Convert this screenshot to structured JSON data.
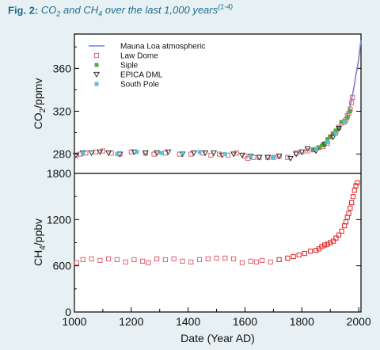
{
  "figure": {
    "label": "Fig. 2:",
    "title_parts": [
      "CO",
      "2",
      " and CH",
      "4",
      " over the last 1,000 years",
      "(1-4)"
    ]
  },
  "chart_data": [
    {
      "type": "scatter",
      "panel": "top",
      "ylabel_parts": [
        "CO",
        "2",
        "/ppmv"
      ],
      "xlabel": "Date (Year AD)",
      "xlim": [
        1000,
        2008
      ],
      "ylim": [
        262,
        392
      ],
      "yticks": [
        280,
        320,
        360
      ],
      "xticks": [
        1000,
        1200,
        1400,
        1600,
        1800,
        2000
      ],
      "legend_position": "top-left",
      "legend": [
        {
          "name": "Mauna Loa atmospheric",
          "color": "#7b7fcf",
          "marker": "line"
        },
        {
          "name": "Law Dome",
          "color": "#e06070",
          "marker": "square"
        },
        {
          "name": "Siple",
          "color": "#55a83a",
          "marker": "square-filled"
        },
        {
          "name": "EPICA DML",
          "color": "#333333",
          "marker": "triangle-down"
        },
        {
          "name": "South Pole",
          "color": "#5cc0d8",
          "marker": "square-filled"
        }
      ],
      "series": [
        {
          "name": "Mauna Loa atmospheric",
          "x": [
            1958,
            1965,
            1970,
            1975,
            1980,
            1985,
            1990,
            1995,
            2000,
            2005,
            2008
          ],
          "y": [
            315,
            320,
            325,
            331,
            338,
            345,
            354,
            360,
            369,
            380,
            386
          ]
        },
        {
          "name": "Law Dome",
          "x": [
            1006,
            1020,
            1040,
            1075,
            1100,
            1130,
            1160,
            1200,
            1250,
            1280,
            1320,
            1370,
            1410,
            1450,
            1480,
            1510,
            1540,
            1570,
            1600,
            1610,
            1630,
            1650,
            1680,
            1700,
            1720,
            1750,
            1780,
            1800,
            1820,
            1840,
            1860,
            1875,
            1890,
            1900,
            1910,
            1920,
            1930,
            1940,
            1950,
            1955,
            1960,
            1965,
            1970,
            1975,
            1978
          ],
          "y": [
            279,
            280,
            281,
            282,
            283,
            281,
            280,
            282,
            281,
            280,
            281,
            280,
            280,
            281,
            279,
            280,
            279,
            281,
            278,
            276,
            277,
            277,
            277,
            277,
            278,
            277,
            281,
            282,
            283,
            284,
            286,
            287,
            290,
            296,
            299,
            301,
            305,
            309,
            310,
            312,
            316,
            318,
            322,
            328,
            333
          ]
        },
        {
          "name": "Siple",
          "x": [
            1840,
            1850,
            1860,
            1870,
            1880,
            1890,
            1900,
            1910,
            1920,
            1930,
            1940,
            1950,
            1960,
            1970
          ],
          "y": [
            284,
            285,
            286,
            288,
            290,
            294,
            296,
            299,
            302,
            304,
            310,
            311,
            314,
            320
          ]
        },
        {
          "name": "EPICA DML",
          "x": [
            1005,
            1030,
            1060,
            1090,
            1120,
            1160,
            1210,
            1250,
            1290,
            1330,
            1380,
            1420,
            1460,
            1490,
            1520,
            1560,
            1590,
            1620,
            1650,
            1680,
            1720,
            1760,
            1780,
            1800,
            1820,
            1850,
            1880,
            1910,
            1930
          ],
          "y": [
            279,
            281,
            281,
            282,
            281,
            280,
            282,
            281,
            281,
            282,
            280,
            281,
            281,
            281,
            279,
            280,
            279,
            278,
            277,
            277,
            278,
            276,
            280,
            282,
            285,
            283,
            289,
            296,
            304
          ]
        },
        {
          "name": "South Pole",
          "x": [
            1030,
            1150,
            1220,
            1305,
            1380,
            1440,
            1530,
            1620,
            1700,
            1850,
            1890,
            1920,
            1950
          ],
          "y": [
            281,
            280,
            282,
            281,
            281,
            282,
            280,
            278,
            277,
            285,
            291,
            299,
            310
          ]
        }
      ]
    },
    {
      "type": "scatter",
      "panel": "bottom",
      "ylabel_parts": [
        "CH",
        "4",
        "/ppbv"
      ],
      "xlabel": "Date (Year AD)",
      "xlim": [
        1000,
        2008
      ],
      "ylim": [
        0,
        1800
      ],
      "yticks": [
        0,
        600,
        1200,
        1800
      ],
      "xticks": [
        1000,
        1200,
        1400,
        1600,
        1800,
        2000
      ],
      "series": [
        {
          "name": "Law Dome",
          "x": [
            1008,
            1030,
            1060,
            1090,
            1120,
            1150,
            1180,
            1210,
            1240,
            1260,
            1290,
            1320,
            1350,
            1380,
            1410,
            1440,
            1470,
            1500,
            1530,
            1560,
            1590,
            1620,
            1640,
            1660,
            1690,
            1720,
            1750,
            1770,
            1790,
            1810,
            1830,
            1850,
            1860,
            1870,
            1880,
            1890,
            1900,
            1910,
            1920,
            1930,
            1940,
            1950,
            1955,
            1960,
            1965,
            1970,
            1975,
            1980,
            1985,
            1990,
            1995
          ],
          "y": [
            640,
            680,
            690,
            670,
            690,
            680,
            650,
            680,
            660,
            640,
            690,
            680,
            690,
            660,
            650,
            680,
            690,
            700,
            700,
            690,
            640,
            660,
            650,
            670,
            650,
            680,
            700,
            720,
            740,
            760,
            790,
            800,
            820,
            850,
            870,
            880,
            900,
            920,
            960,
            1000,
            1050,
            1120,
            1170,
            1230,
            1280,
            1350,
            1420,
            1500,
            1580,
            1640,
            1680
          ]
        }
      ]
    }
  ]
}
